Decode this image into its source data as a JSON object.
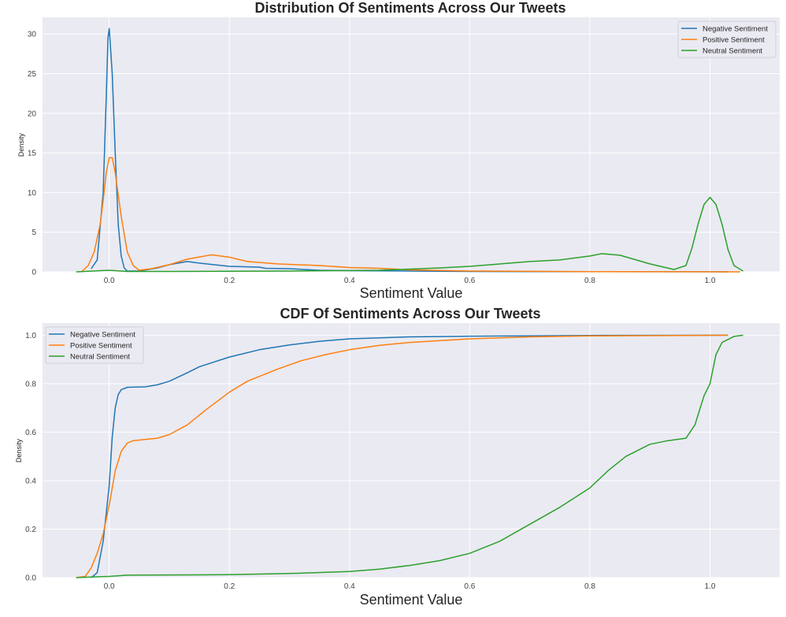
{
  "colors": {
    "negative": "#1f77b4",
    "positive": "#ff7f0e",
    "neutral": "#2ca02c",
    "background": "#eaeaf2",
    "grid": "#ffffff"
  },
  "chart_data": [
    {
      "type": "line",
      "title": "Distribution Of Sentiments Across Our Tweets",
      "xlabel": "Sentiment Value",
      "ylabel": "Density",
      "xlim": [
        -0.111,
        1.116
      ],
      "ylim": [
        0,
        32.1
      ],
      "xticks": [
        "0.0",
        "0.2",
        "0.4",
        "0.6",
        "0.8",
        "1.0"
      ],
      "yticks": [
        "0",
        "5",
        "10",
        "15",
        "20",
        "25",
        "30"
      ],
      "grid": true,
      "legend": "top-right",
      "series": [
        {
          "name": "Negative Sentiment",
          "color_key": "negative",
          "x": [
            -0.03,
            -0.02,
            -0.01,
            -0.005,
            -0.002,
            0.0,
            0.005,
            0.01,
            0.015,
            0.02,
            0.025,
            0.03,
            0.05,
            0.08,
            0.1,
            0.13,
            0.15,
            0.2,
            0.25,
            0.26,
            0.3,
            0.35,
            0.4,
            0.5,
            0.6,
            0.8,
            1.0,
            1.03
          ],
          "y": [
            0.4,
            1.5,
            10,
            22,
            29.5,
            30.7,
            25,
            15,
            6,
            2,
            0.5,
            0.1,
            0.1,
            0.5,
            0.9,
            1.3,
            1.1,
            0.7,
            0.6,
            0.45,
            0.4,
            0.2,
            0.15,
            0.1,
            0.05,
            0.02,
            0.01,
            0
          ]
        },
        {
          "name": "Positive Sentiment",
          "color_key": "positive",
          "x": [
            -0.045,
            -0.035,
            -0.025,
            -0.015,
            -0.01,
            -0.005,
            0.0,
            0.005,
            0.01,
            0.02,
            0.03,
            0.04,
            0.05,
            0.07,
            0.1,
            0.13,
            0.17,
            0.2,
            0.23,
            0.28,
            0.35,
            0.4,
            0.45,
            0.5,
            0.6,
            0.8,
            1.05
          ],
          "y": [
            0.1,
            0.8,
            2.5,
            6,
            9,
            12.5,
            14.4,
            14.4,
            12.5,
            7,
            2.5,
            0.8,
            0.2,
            0.4,
            0.9,
            1.6,
            2.15,
            1.85,
            1.3,
            1.0,
            0.8,
            0.55,
            0.45,
            0.25,
            0.1,
            0.03,
            0
          ]
        },
        {
          "name": "Neutral Sentiment",
          "color_key": "neutral",
          "x": [
            -0.055,
            0.0,
            0.03,
            0.1,
            0.3,
            0.45,
            0.55,
            0.6,
            0.7,
            0.75,
            0.8,
            0.82,
            0.85,
            0.9,
            0.94,
            0.96,
            0.97,
            0.98,
            0.99,
            1.0,
            1.01,
            1.02,
            1.03,
            1.04,
            1.055
          ],
          "y": [
            0,
            0.2,
            0.05,
            0.05,
            0.1,
            0.2,
            0.5,
            0.7,
            1.3,
            1.5,
            2.0,
            2.3,
            2.1,
            1.0,
            0.3,
            0.8,
            3,
            6,
            8.5,
            9.4,
            8.5,
            6,
            2.8,
            0.8,
            0.1
          ]
        }
      ]
    },
    {
      "type": "line",
      "title": "CDF Of Sentiments Across Our Tweets",
      "xlabel": "Sentiment Value",
      "ylabel": "Density",
      "xlim": [
        -0.111,
        1.116
      ],
      "ylim": [
        0,
        1.05
      ],
      "xticks": [
        "0.0",
        "0.2",
        "0.4",
        "0.6",
        "0.8",
        "1.0"
      ],
      "yticks": [
        "0.0",
        "0.2",
        "0.4",
        "0.6",
        "0.8",
        "1.0"
      ],
      "grid": true,
      "legend": "top-left",
      "series": [
        {
          "name": "Negative Sentiment",
          "color_key": "negative",
          "x": [
            -0.03,
            -0.02,
            -0.01,
            0.0,
            0.005,
            0.01,
            0.015,
            0.02,
            0.03,
            0.06,
            0.08,
            0.1,
            0.13,
            0.15,
            0.2,
            0.25,
            0.3,
            0.35,
            0.4,
            0.5,
            0.6,
            0.8,
            1.03
          ],
          "y": [
            0,
            0.02,
            0.15,
            0.38,
            0.58,
            0.7,
            0.755,
            0.775,
            0.785,
            0.787,
            0.795,
            0.81,
            0.845,
            0.87,
            0.91,
            0.94,
            0.96,
            0.975,
            0.985,
            0.993,
            0.996,
            0.999,
            1.0
          ]
        },
        {
          "name": "Positive Sentiment",
          "color_key": "positive",
          "x": [
            -0.055,
            -0.04,
            -0.03,
            -0.02,
            -0.01,
            0.0,
            0.01,
            0.02,
            0.03,
            0.04,
            0.08,
            0.1,
            0.13,
            0.16,
            0.2,
            0.23,
            0.28,
            0.32,
            0.36,
            0.4,
            0.45,
            0.5,
            0.6,
            0.7,
            0.8,
            1.03
          ],
          "y": [
            0,
            0.005,
            0.04,
            0.1,
            0.18,
            0.3,
            0.44,
            0.52,
            0.555,
            0.565,
            0.575,
            0.59,
            0.63,
            0.69,
            0.765,
            0.81,
            0.86,
            0.895,
            0.92,
            0.94,
            0.958,
            0.97,
            0.985,
            0.993,
            0.997,
            1.0
          ]
        },
        {
          "name": "Neutral Sentiment",
          "color_key": "neutral",
          "x": [
            -0.055,
            0.0,
            0.03,
            0.2,
            0.3,
            0.4,
            0.45,
            0.5,
            0.55,
            0.6,
            0.65,
            0.7,
            0.75,
            0.8,
            0.83,
            0.86,
            0.9,
            0.93,
            0.96,
            0.975,
            0.99,
            1.0,
            1.01,
            1.02,
            1.04,
            1.055
          ],
          "y": [
            0,
            0.005,
            0.01,
            0.012,
            0.017,
            0.025,
            0.035,
            0.05,
            0.07,
            0.1,
            0.15,
            0.22,
            0.29,
            0.37,
            0.44,
            0.5,
            0.55,
            0.565,
            0.575,
            0.63,
            0.75,
            0.8,
            0.92,
            0.97,
            0.995,
            1.0
          ]
        }
      ]
    }
  ]
}
